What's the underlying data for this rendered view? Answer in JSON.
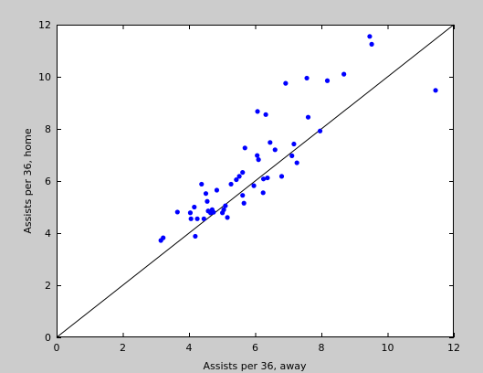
{
  "chart_data": {
    "type": "scatter",
    "title": "",
    "xlabel": "Assists per 36, away",
    "ylabel": "Assists per 36, home",
    "xlim": [
      0,
      12
    ],
    "ylim": [
      0,
      12
    ],
    "xticks": [
      0,
      2,
      4,
      6,
      8,
      10,
      12
    ],
    "yticks": [
      0,
      2,
      4,
      6,
      8,
      10,
      12
    ],
    "tick_labels_x": [
      "0",
      "2",
      "4",
      "6",
      "8",
      "10",
      "12"
    ],
    "tick_labels_y": [
      "0",
      "2",
      "4",
      "6",
      "8",
      "10",
      "12"
    ],
    "grid": false,
    "legend": "none",
    "reference_line": {
      "x": [
        0,
        12
      ],
      "y": [
        0,
        12
      ],
      "color": "#000000"
    },
    "marker_color": "#0000ff",
    "figure_background": "#cccccc",
    "axes_background": "#ffffff",
    "series": [
      {
        "points": [
          [
            3.15,
            3.72
          ],
          [
            3.22,
            3.82
          ],
          [
            3.65,
            4.81
          ],
          [
            4.04,
            4.78
          ],
          [
            4.06,
            4.55
          ],
          [
            4.16,
            5.0
          ],
          [
            4.19,
            3.88
          ],
          [
            4.25,
            4.55
          ],
          [
            4.38,
            5.88
          ],
          [
            4.45,
            4.55
          ],
          [
            4.51,
            5.52
          ],
          [
            4.55,
            5.22
          ],
          [
            4.58,
            4.85
          ],
          [
            4.65,
            4.78
          ],
          [
            4.7,
            4.9
          ],
          [
            4.74,
            4.8
          ],
          [
            4.84,
            5.65
          ],
          [
            5.01,
            4.78
          ],
          [
            5.05,
            4.9
          ],
          [
            5.1,
            5.05
          ],
          [
            5.16,
            4.6
          ],
          [
            5.27,
            5.88
          ],
          [
            5.43,
            6.05
          ],
          [
            5.52,
            6.18
          ],
          [
            5.62,
            6.33
          ],
          [
            5.62,
            5.45
          ],
          [
            5.66,
            5.15
          ],
          [
            5.69,
            7.27
          ],
          [
            5.96,
            5.82
          ],
          [
            6.06,
            6.98
          ],
          [
            6.07,
            8.67
          ],
          [
            6.1,
            6.82
          ],
          [
            6.24,
            5.55
          ],
          [
            6.25,
            6.08
          ],
          [
            6.32,
            8.55
          ],
          [
            6.37,
            6.12
          ],
          [
            6.45,
            7.48
          ],
          [
            6.6,
            7.2
          ],
          [
            6.8,
            6.18
          ],
          [
            6.92,
            9.75
          ],
          [
            7.11,
            6.97
          ],
          [
            7.17,
            7.42
          ],
          [
            7.26,
            6.7
          ],
          [
            7.56,
            9.95
          ],
          [
            7.6,
            8.45
          ],
          [
            7.96,
            7.92
          ],
          [
            8.18,
            9.85
          ],
          [
            8.68,
            10.1
          ],
          [
            9.46,
            11.55
          ],
          [
            9.52,
            11.25
          ],
          [
            11.45,
            9.48
          ]
        ]
      }
    ]
  }
}
